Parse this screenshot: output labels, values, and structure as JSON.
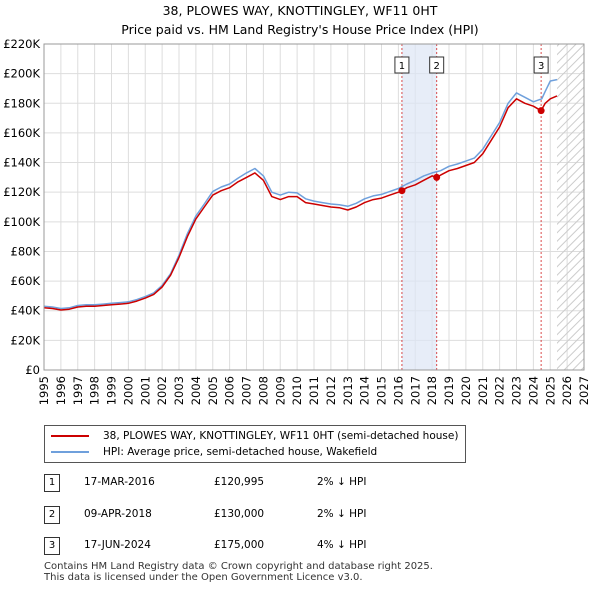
{
  "chart_data": {
    "type": "line",
    "title": "38, PLOWES WAY, KNOTTINGLEY, WF11 0HT",
    "subtitle": "Price paid vs. HM Land Registry's House Price Index (HPI)",
    "xlabel": "",
    "ylabel": "",
    "xlim": [
      1995,
      2027
    ],
    "ylim": [
      0,
      220000
    ],
    "y_ticks": [
      0,
      20000,
      40000,
      60000,
      80000,
      100000,
      120000,
      140000,
      160000,
      180000,
      200000,
      220000
    ],
    "y_tick_labels": [
      "£0",
      "£20K",
      "£40K",
      "£60K",
      "£80K",
      "£100K",
      "£120K",
      "£140K",
      "£160K",
      "£180K",
      "£200K",
      "£220K"
    ],
    "x_ticks": [
      1995,
      1996,
      1997,
      1998,
      1999,
      2000,
      2001,
      2002,
      2003,
      2004,
      2005,
      2006,
      2007,
      2008,
      2009,
      2010,
      2011,
      2012,
      2013,
      2014,
      2015,
      2016,
      2017,
      2018,
      2019,
      2020,
      2021,
      2022,
      2023,
      2024,
      2025,
      2026,
      2027
    ],
    "x_tick_labels": [
      "1995",
      "1996",
      "1997",
      "1998",
      "1999",
      "2000",
      "2001",
      "2002",
      "2003",
      "2004",
      "2005",
      "2006",
      "2007",
      "2008",
      "2009",
      "2010",
      "2011",
      "2012",
      "2013",
      "2014",
      "2015",
      "2016",
      "2017",
      "2018",
      "2019",
      "2020",
      "2021",
      "2022",
      "2023",
      "2024",
      "2025",
      "2026",
      "2027"
    ],
    "grid": true,
    "hatch_from": 2025.4,
    "shaded_span": [
      2016.21,
      2018.27
    ],
    "series": [
      {
        "name": "38, PLOWES WAY, KNOTTINGLEY, WF11 0HT (semi-detached house)",
        "color": "#cc0000",
        "x": [
          1995.0,
          1995.5,
          1996.0,
          1996.5,
          1997.0,
          1997.5,
          1998.0,
          1998.5,
          1999.0,
          1999.5,
          2000.0,
          2000.5,
          2001.0,
          2001.5,
          2002.0,
          2002.5,
          2003.0,
          2003.5,
          2004.0,
          2004.5,
          2005.0,
          2005.5,
          2006.0,
          2006.5,
          2007.0,
          2007.5,
          2008.0,
          2008.5,
          2009.0,
          2009.5,
          2010.0,
          2010.5,
          2011.0,
          2011.5,
          2012.0,
          2012.5,
          2013.0,
          2013.5,
          2014.0,
          2014.5,
          2015.0,
          2015.5,
          2016.0,
          2016.21,
          2016.5,
          2017.0,
          2017.5,
          2018.0,
          2018.27,
          2018.5,
          2019.0,
          2019.5,
          2020.0,
          2020.5,
          2021.0,
          2021.5,
          2022.0,
          2022.5,
          2023.0,
          2023.5,
          2024.0,
          2024.46,
          2024.7,
          2025.0,
          2025.4
        ],
        "values": [
          42000,
          41500,
          40500,
          41000,
          42500,
          43000,
          43000,
          43500,
          44000,
          44500,
          45000,
          46500,
          48500,
          51000,
          56000,
          64000,
          76000,
          90000,
          102000,
          110000,
          118000,
          121000,
          123000,
          127000,
          130000,
          133000,
          128000,
          117000,
          115000,
          117000,
          117000,
          113000,
          112000,
          111000,
          110000,
          109500,
          108000,
          110000,
          113000,
          115000,
          116000,
          118000,
          120000,
          120995,
          123000,
          125000,
          128000,
          131000,
          130000,
          131500,
          134500,
          136000,
          138000,
          140000,
          146000,
          155000,
          164000,
          177000,
          183000,
          180000,
          178000,
          175000,
          180000,
          183000,
          185000
        ]
      },
      {
        "name": "HPI: Average price, semi-detached house, Wakefield",
        "color": "#6fa0dc",
        "x": [
          1995.0,
          1995.5,
          1996.0,
          1996.5,
          1997.0,
          1997.5,
          1998.0,
          1998.5,
          1999.0,
          1999.5,
          2000.0,
          2000.5,
          2001.0,
          2001.5,
          2002.0,
          2002.5,
          2003.0,
          2003.5,
          2004.0,
          2004.5,
          2005.0,
          2005.5,
          2006.0,
          2006.5,
          2007.0,
          2007.5,
          2008.0,
          2008.5,
          2009.0,
          2009.5,
          2010.0,
          2010.5,
          2011.0,
          2011.5,
          2012.0,
          2012.5,
          2013.0,
          2013.5,
          2014.0,
          2014.5,
          2015.0,
          2015.5,
          2016.0,
          2016.5,
          2017.0,
          2017.5,
          2018.0,
          2018.5,
          2019.0,
          2019.5,
          2020.0,
          2020.5,
          2021.0,
          2021.5,
          2022.0,
          2022.5,
          2023.0,
          2023.5,
          2024.0,
          2024.5,
          2024.7,
          2025.0,
          2025.4
        ],
        "values": [
          43000,
          42500,
          41500,
          42000,
          43500,
          44000,
          44000,
          44500,
          45000,
          45500,
          46000,
          47500,
          49500,
          52000,
          57000,
          65000,
          77500,
          92000,
          104000,
          112000,
          120500,
          123500,
          125500,
          129500,
          133000,
          136000,
          131000,
          120000,
          118000,
          120000,
          119500,
          115500,
          114000,
          113000,
          112000,
          111500,
          110500,
          112500,
          115500,
          117500,
          118500,
          120500,
          122500,
          125500,
          128000,
          131000,
          133000,
          134500,
          137500,
          139000,
          141000,
          143000,
          149000,
          158000,
          167000,
          180000,
          187000,
          184000,
          181000,
          183000,
          188000,
          195000,
          196000
        ]
      }
    ],
    "markers": [
      {
        "label": "1",
        "x": 2016.21,
        "value": 120995
      },
      {
        "label": "2",
        "x": 2018.27,
        "value": 130000
      },
      {
        "label": "3",
        "x": 2024.46,
        "value": 175000
      }
    ]
  },
  "legend": {
    "items": [
      {
        "label": "38, PLOWES WAY, KNOTTINGLEY, WF11 0HT (semi-detached house)",
        "color": "#cc0000"
      },
      {
        "label": "HPI: Average price, semi-detached house, Wakefield",
        "color": "#6fa0dc"
      }
    ]
  },
  "sales": [
    {
      "num": "1",
      "date": "17-MAR-2016",
      "price": "£120,995",
      "hpi": "2% ↓ HPI"
    },
    {
      "num": "2",
      "date": "09-APR-2018",
      "price": "£130,000",
      "hpi": "2% ↓ HPI"
    },
    {
      "num": "3",
      "date": "17-JUN-2024",
      "price": "£175,000",
      "hpi": "4% ↓ HPI"
    }
  ],
  "footer": {
    "line1": "Contains HM Land Registry data © Crown copyright and database right 2025.",
    "line2": "This data is licensed under the Open Government Licence v3.0."
  }
}
